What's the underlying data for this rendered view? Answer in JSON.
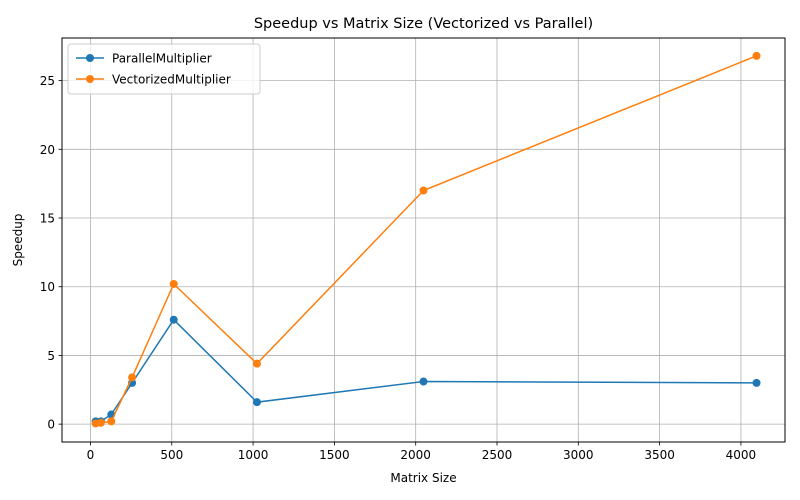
{
  "chart_data": {
    "type": "line",
    "title": "Speedup vs Matrix Size (Vectorized vs Parallel)",
    "xlabel": "Matrix Size",
    "ylabel": "Speedup",
    "xlim": [
      -175,
      4271
    ],
    "ylim": [
      -1.3,
      28.1
    ],
    "xticks": [
      0,
      500,
      1000,
      1500,
      2000,
      2500,
      3000,
      3500,
      4000
    ],
    "yticks": [
      0,
      5,
      10,
      15,
      20,
      25
    ],
    "grid": true,
    "legend_position": "top-left",
    "series": [
      {
        "name": "ParallelMultiplier",
        "color": "#1f77b4",
        "x": [
          32,
          64,
          128,
          256,
          512,
          1024,
          2048,
          4096
        ],
        "y": [
          0.2,
          0.2,
          0.7,
          3.0,
          7.6,
          1.6,
          3.1,
          3.0
        ]
      },
      {
        "name": "VectorizedMultiplier",
        "color": "#ff7f0e",
        "x": [
          32,
          64,
          128,
          256,
          512,
          1024,
          2048,
          4096
        ],
        "y": [
          0.05,
          0.1,
          0.2,
          3.4,
          10.2,
          4.4,
          17.0,
          26.8
        ]
      }
    ]
  }
}
